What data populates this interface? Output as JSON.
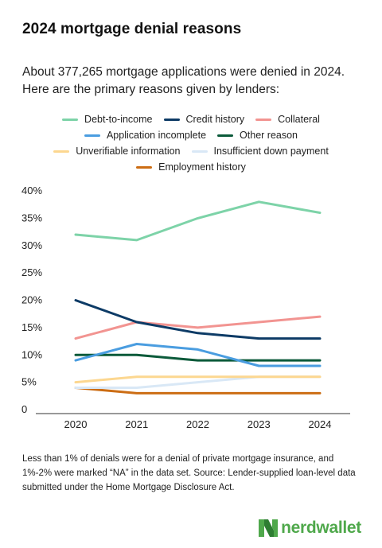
{
  "title": "2024 mortgage denial reasons",
  "subtitle": "About 377,265 mortgage applications were denied in 2024. Here are the primary reasons given by lenders:",
  "footnote": "Less than 1% of denials were for a denial of private mortgage insurance, and 1%-2% were marked “NA” in the data set. Source: Lender-supplied loan-level data submitted under the Home Mortgage Disclosure Act.",
  "brand": {
    "name": "nerdwallet",
    "color": "#4fa84b"
  },
  "chart_data": {
    "type": "line",
    "x": [
      "2020",
      "2021",
      "2022",
      "2023",
      "2024"
    ],
    "ylim": [
      0,
      40
    ],
    "yticks": [
      0,
      5,
      10,
      15,
      20,
      25,
      30,
      35,
      40
    ],
    "ytick_labels": [
      "0",
      "5%",
      "10%",
      "15%",
      "20%",
      "25%",
      "30%",
      "35%",
      "40%"
    ],
    "grid": false,
    "legend_position": "top",
    "series": [
      {
        "name": "Debt-to-income",
        "color": "#7dd3a8",
        "values": [
          32,
          31,
          35,
          38,
          36
        ]
      },
      {
        "name": "Credit history",
        "color": "#0d3b66",
        "values": [
          20,
          16,
          14,
          13,
          13
        ]
      },
      {
        "name": "Collateral",
        "color": "#f29491",
        "values": [
          13,
          16,
          15,
          16,
          17
        ]
      },
      {
        "name": "Application incomplete",
        "color": "#4a9de0",
        "values": [
          9,
          12,
          11,
          8,
          8
        ]
      },
      {
        "name": "Other reason",
        "color": "#0b5a3a",
        "values": [
          10,
          10,
          9,
          9,
          9
        ]
      },
      {
        "name": "Unverifiable information",
        "color": "#fcd790",
        "values": [
          5,
          6,
          6,
          6,
          6
        ]
      },
      {
        "name": "Insufficient down payment",
        "color": "#d9e8f6",
        "values": [
          4,
          4,
          5,
          6,
          6
        ]
      },
      {
        "name": "Employment history",
        "color": "#cc6d14",
        "values": [
          4,
          3,
          3,
          3,
          3
        ]
      }
    ]
  }
}
